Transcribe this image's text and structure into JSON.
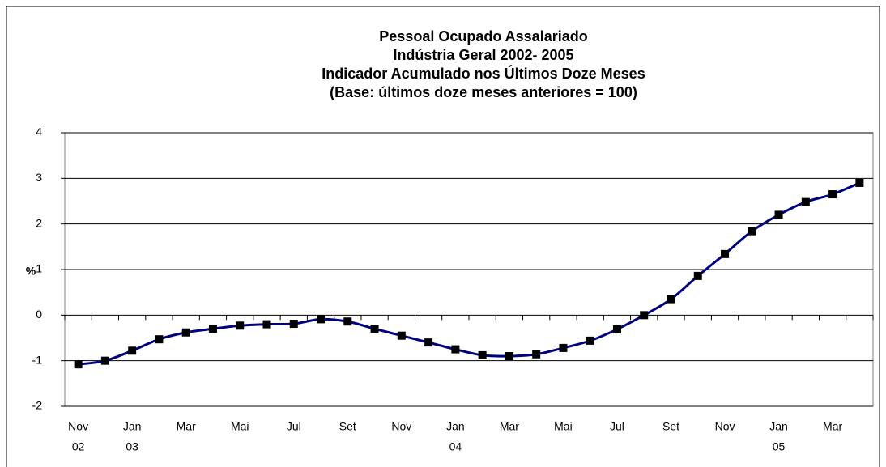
{
  "chart_data": {
    "type": "line",
    "title": [
      "Pessoal Ocupado Assalariado",
      "Indústria Geral 2002- 2005",
      "Indicador Acumulado nos Últimos Doze Meses",
      "(Base: últimos doze meses anteriores = 100)"
    ],
    "ylabel": "%",
    "categories": [
      "Nov",
      null,
      "Jan",
      null,
      "Mar",
      null,
      "Mai",
      null,
      "Jul",
      null,
      "Set",
      null,
      "Nov",
      null,
      "Jan",
      null,
      "Mar",
      null,
      "Mai",
      null,
      "Jul",
      null,
      "Set",
      null,
      "Nov",
      null,
      "Jan",
      null,
      "Mar",
      null
    ],
    "category_years": [
      "02",
      null,
      "03",
      null,
      null,
      null,
      null,
      null,
      null,
      null,
      null,
      null,
      null,
      null,
      "04",
      null,
      null,
      null,
      null,
      null,
      null,
      null,
      null,
      null,
      null,
      null,
      "05",
      null,
      null,
      null
    ],
    "series": [
      {
        "color": "#000080",
        "marker_color": "#000000",
        "values": [
          -1.08,
          -1.0,
          -0.78,
          -0.53,
          -0.38,
          -0.3,
          -0.23,
          -0.2,
          -0.19,
          -0.09,
          -0.14,
          -0.3,
          -0.45,
          -0.6,
          -0.75,
          -0.88,
          -0.9,
          -0.86,
          -0.72,
          -0.56,
          -0.31,
          0.0,
          0.35,
          0.86,
          1.34,
          1.84,
          2.2,
          2.48,
          2.65,
          2.9
        ]
      }
    ],
    "ylim": [
      -2,
      4
    ],
    "yticks": [
      -2,
      -1,
      0,
      1,
      2,
      3,
      4
    ],
    "grid": true
  }
}
